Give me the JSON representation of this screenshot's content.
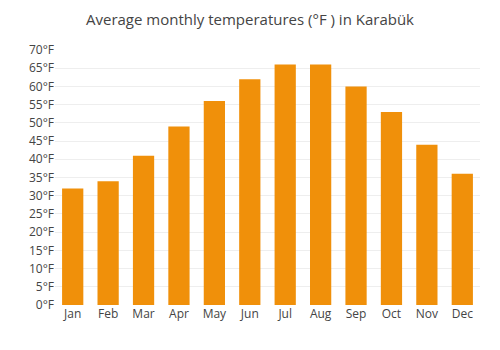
{
  "chart_data": {
    "type": "bar",
    "title": "Average monthly temperatures (°F ) in Karabük",
    "categories": [
      "Jan",
      "Feb",
      "Mar",
      "Apr",
      "May",
      "Jun",
      "Jul",
      "Aug",
      "Sep",
      "Oct",
      "Nov",
      "Dec"
    ],
    "values": [
      32,
      34,
      41,
      49,
      56,
      62,
      66,
      66,
      60,
      53,
      44,
      36
    ],
    "color": "#F0900A",
    "ylim": [
      0,
      70
    ],
    "yticks": [
      {
        "value": 0,
        "label": "0°F"
      },
      {
        "value": 5,
        "label": "5°F"
      },
      {
        "value": 10,
        "label": "10°F"
      },
      {
        "value": 15,
        "label": "15°F"
      },
      {
        "value": 20,
        "label": "20°F"
      },
      {
        "value": 25,
        "label": "25°F"
      },
      {
        "value": 30,
        "label": "30°F"
      },
      {
        "value": 35,
        "label": "35°F"
      },
      {
        "value": 40,
        "label": "40°F"
      },
      {
        "value": 45,
        "label": "45°F"
      },
      {
        "value": 50,
        "label": "50°F"
      },
      {
        "value": 55,
        "label": "55°F"
      },
      {
        "value": 60,
        "label": "60°F"
      },
      {
        "value": 65,
        "label": "65°F"
      },
      {
        "value": 70,
        "label": "70°F"
      }
    ],
    "grid": true
  }
}
